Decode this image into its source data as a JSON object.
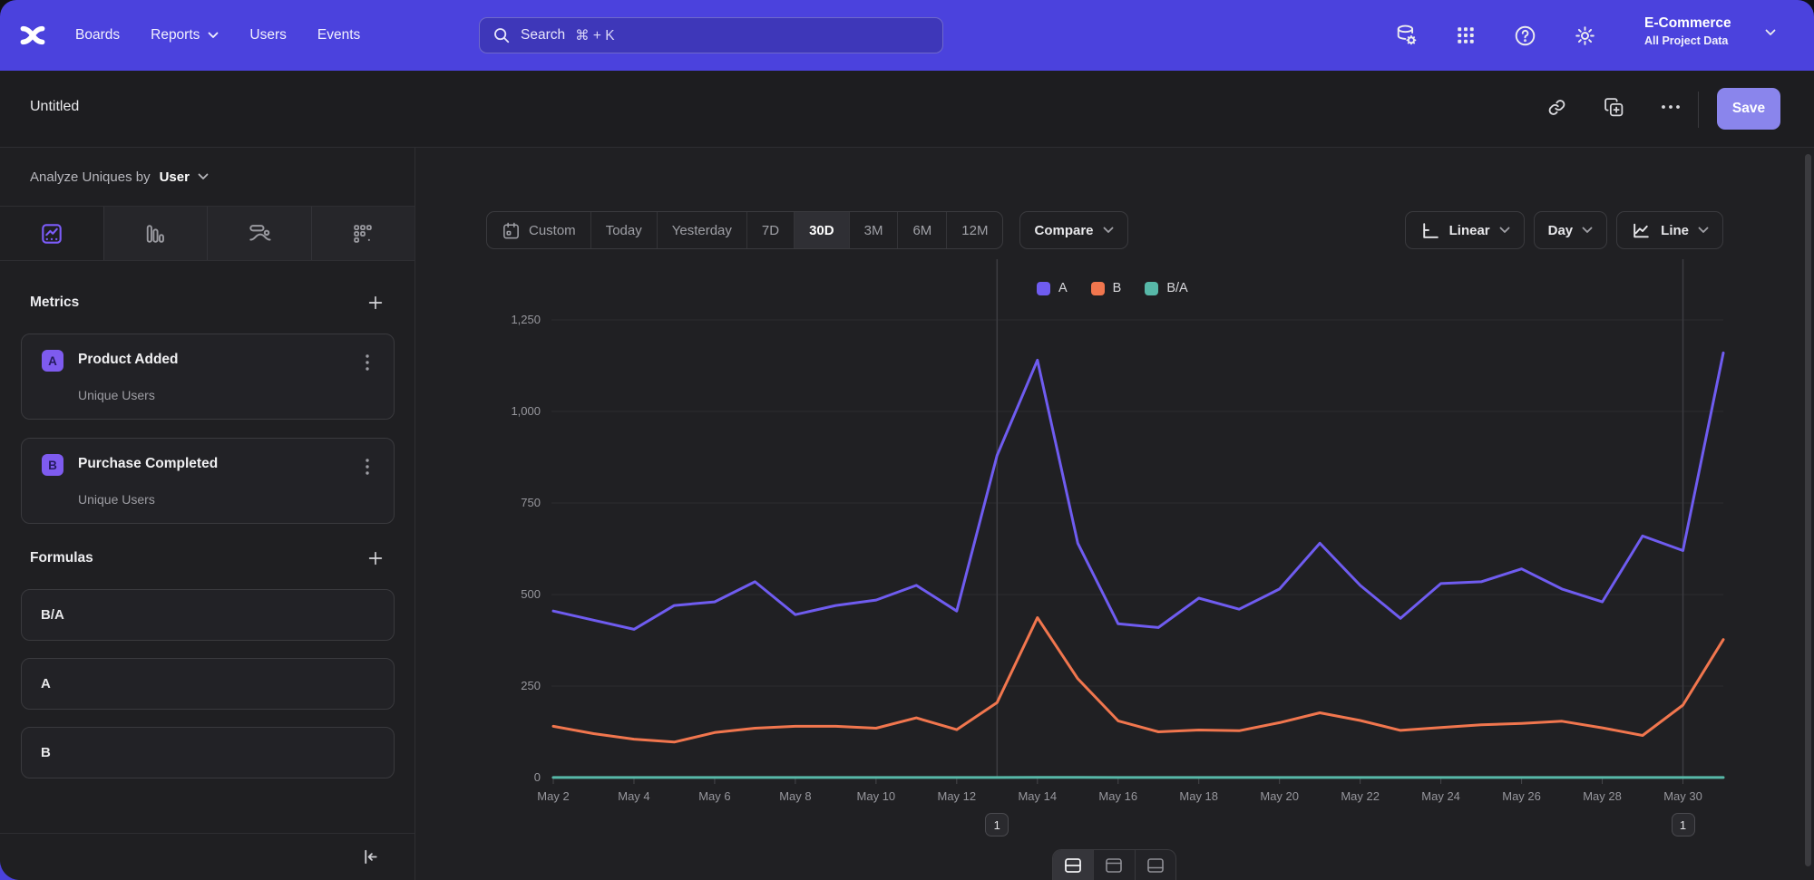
{
  "topbar": {
    "nav": [
      {
        "label": "Boards",
        "chevron": false
      },
      {
        "label": "Reports",
        "chevron": true
      },
      {
        "label": "Users",
        "chevron": false
      },
      {
        "label": "Events",
        "chevron": false
      }
    ],
    "search": {
      "placeholder": "Search",
      "shortcut": "⌘ + K"
    },
    "icons": [
      "data-management-icon",
      "apps-grid-icon",
      "help-icon",
      "settings-icon"
    ],
    "project": {
      "name": "E-Commerce",
      "scope": "All Project Data"
    }
  },
  "header": {
    "title": "Untitled",
    "actions": [
      "copy-link-icon",
      "duplicate-icon",
      "more-options-icon"
    ],
    "save_label": "Save"
  },
  "sidebar": {
    "analyze_label": "Analyze Uniques by",
    "analyze_value": "User",
    "tabs": [
      "insights-tab",
      "funnel-tab",
      "flows-tab",
      "retention-tab"
    ],
    "active_tab": "insights-tab",
    "metrics": {
      "title": "Metrics",
      "items": [
        {
          "badge": "A",
          "name": "Product Added",
          "measure": "Unique Users"
        },
        {
          "badge": "B",
          "name": "Purchase Completed",
          "measure": "Unique Users"
        }
      ]
    },
    "formulas": {
      "title": "Formulas",
      "items": [
        "B/A",
        "A",
        "B"
      ]
    }
  },
  "toolbar": {
    "date_ranges": [
      {
        "label": "Custom",
        "icon": "calendar"
      },
      {
        "label": "Today"
      },
      {
        "label": "Yesterday"
      },
      {
        "label": "7D"
      },
      {
        "label": "30D"
      },
      {
        "label": "3M"
      },
      {
        "label": "6M"
      },
      {
        "label": "12M"
      }
    ],
    "active_range": "30D",
    "compare_label": "Compare",
    "scale_label": "Linear",
    "granularity_label": "Day",
    "chart_type_label": "Line"
  },
  "view_toggles": [
    "split-view",
    "top-panel-view",
    "bottom-panel-view"
  ],
  "active_view_toggle": "split-view",
  "chart_data": {
    "type": "line",
    "x": [
      "May 2",
      "May 3",
      "May 4",
      "May 5",
      "May 6",
      "May 7",
      "May 8",
      "May 9",
      "May 10",
      "May 11",
      "May 12",
      "May 13",
      "May 14",
      "May 15",
      "May 16",
      "May 17",
      "May 18",
      "May 19",
      "May 20",
      "May 21",
      "May 22",
      "May 23",
      "May 24",
      "May 25",
      "May 26",
      "May 27",
      "May 28",
      "May 29",
      "May 30",
      "May 31"
    ],
    "x_tick_labels": [
      "May 2",
      "May 4",
      "May 6",
      "May 8",
      "May 10",
      "May 12",
      "May 14",
      "May 16",
      "May 18",
      "May 20",
      "May 22",
      "May 24",
      "May 26",
      "May 28",
      "May 30"
    ],
    "series": [
      {
        "name": "A",
        "color": "#6f5cf0",
        "values": [
          455,
          430,
          405,
          470,
          480,
          535,
          445,
          470,
          485,
          525,
          455,
          880,
          1140,
          640,
          420,
          410,
          490,
          460,
          515,
          640,
          525,
          435,
          530,
          535,
          570,
          515,
          480,
          660,
          620,
          1160
        ]
      },
      {
        "name": "B",
        "color": "#f1764e",
        "values": [
          140,
          120,
          105,
          97,
          123,
          135,
          140,
          140,
          135,
          163,
          131,
          205,
          437,
          270,
          155,
          125,
          130,
          128,
          150,
          177,
          156,
          129,
          137,
          144,
          148,
          154,
          136,
          115,
          198,
          377
        ]
      },
      {
        "name": "B/A",
        "color": "#57b8a8",
        "values": [
          0.31,
          0.28,
          0.26,
          0.21,
          0.26,
          0.25,
          0.31,
          0.3,
          0.28,
          0.31,
          0.29,
          0.23,
          0.38,
          0.42,
          0.37,
          0.3,
          0.27,
          0.28,
          0.29,
          0.28,
          0.3,
          0.3,
          0.26,
          0.27,
          0.26,
          0.3,
          0.28,
          0.17,
          0.32,
          0.33
        ]
      }
    ],
    "y_ticks": [
      0,
      250,
      500,
      750,
      1000,
      1250
    ],
    "y_tick_labels": [
      "0",
      "250",
      "500",
      "750",
      "1,000",
      "1,250"
    ],
    "ylim": [
      0,
      1250
    ],
    "grid": true,
    "legend_position": "top-center",
    "annotations": [
      {
        "x": "May 13",
        "label": "1"
      },
      {
        "x": "May 30",
        "label": "1"
      }
    ]
  }
}
